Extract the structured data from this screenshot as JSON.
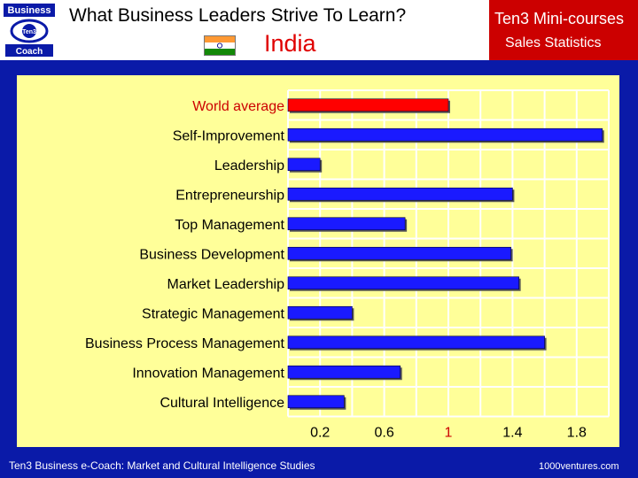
{
  "header": {
    "title": "What Business Leaders Strive To Learn?",
    "country": "India",
    "logo": {
      "top_text": "Business",
      "center_text": "Ten3",
      "bottom_text": "Coach"
    },
    "promo": {
      "line1": "Ten3 Mini-courses",
      "line2": "Sales Statistics"
    }
  },
  "chart_data": {
    "type": "bar",
    "orientation": "horizontal",
    "categories": [
      "World average",
      "Self-Improvement",
      "Leadership",
      "Entrepreneurship",
      "Top Management",
      "Business Development",
      "Market Leadership",
      "Strategic Management",
      "Business Process Management",
      "Innovation Management",
      "Cultural Intelligence"
    ],
    "values": [
      1.0,
      1.96,
      0.2,
      1.4,
      0.73,
      1.39,
      1.44,
      0.4,
      1.6,
      0.7,
      0.35
    ],
    "xlim": [
      0,
      2.0
    ],
    "ticks": [
      0.2,
      0.6,
      1.0,
      1.4,
      1.8
    ],
    "tick_labels": [
      "0.2",
      "0.6",
      "1",
      "1.4",
      "1.8"
    ],
    "highlight_category": "World average",
    "colors": {
      "bar": "#1a1aff",
      "highlight": "#ff0000",
      "background": "#ffff99",
      "grid": "#ffffff"
    },
    "grid": true
  },
  "footer": {
    "left": "Ten3 Business e-Coach: Market and Cultural Intelligence Studies",
    "right": "1000ventures.com"
  }
}
